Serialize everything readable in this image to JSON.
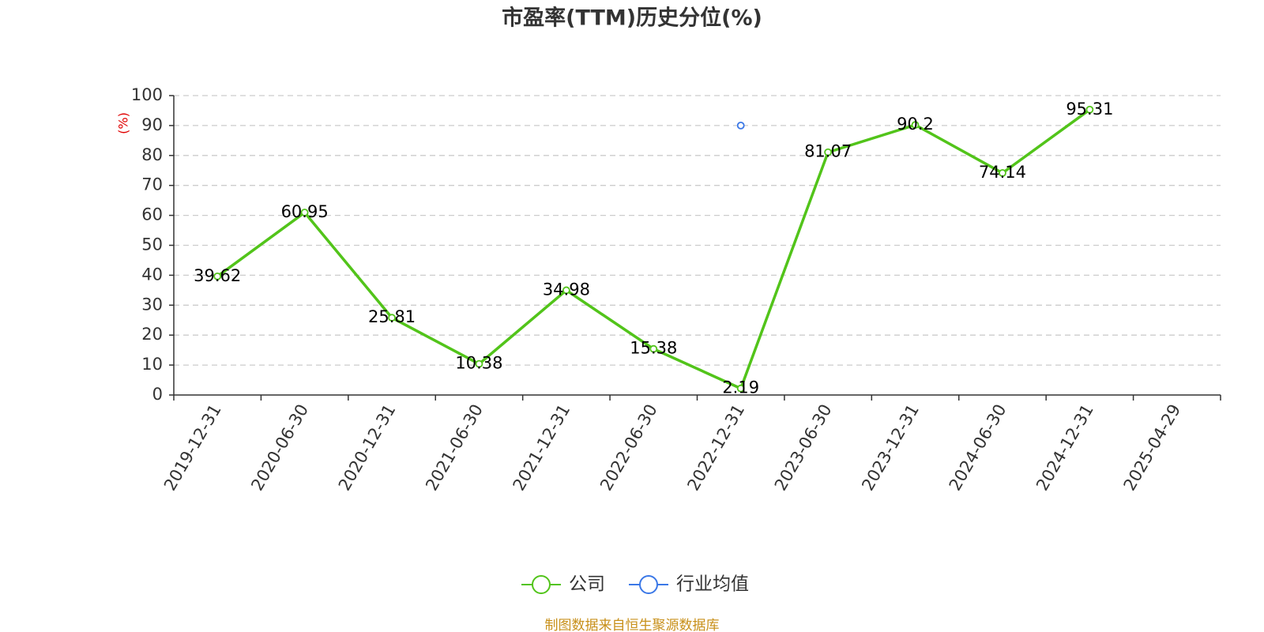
{
  "chart_data": {
    "type": "line",
    "title": "市盈率(TTM)历史分位(%)",
    "y_label": "(%)",
    "categories": [
      "2019-12-31",
      "2020-06-30",
      "2020-12-31",
      "2021-06-30",
      "2021-12-31",
      "2022-06-30",
      "2022-12-31",
      "2023-06-30",
      "2023-12-31",
      "2024-06-30",
      "2024-12-31",
      "2025-04-29"
    ],
    "series": [
      {
        "name": "公司",
        "color": "#52c41a",
        "values": [
          39.62,
          60.95,
          25.81,
          10.38,
          34.98,
          15.38,
          2.19,
          81.07,
          90.2,
          74.14,
          95.31,
          null
        ]
      },
      {
        "name": "行业均值",
        "color": "#3b78e7",
        "values": [
          null,
          null,
          null,
          null,
          null,
          null,
          90,
          null,
          null,
          null,
          null,
          null
        ]
      }
    ],
    "ylim": [
      0,
      100
    ],
    "yticks": [
      0,
      10,
      20,
      30,
      40,
      50,
      60,
      70,
      80,
      90,
      100
    ],
    "grid": true,
    "footer": "制图数据来自恒生聚源数据库"
  }
}
